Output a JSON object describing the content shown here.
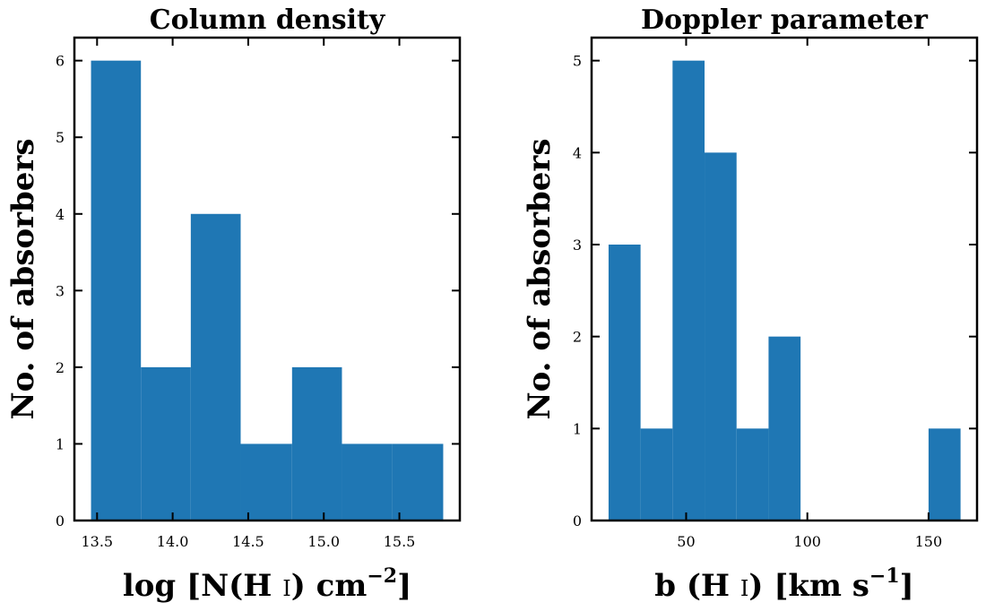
{
  "chart_data": [
    {
      "type": "bar",
      "title": "Column density",
      "xlabel": "log [N(H i) cm^-2]",
      "xlabel_parts": {
        "main": "log [N(H ",
        "ion": "I",
        "mid": ") cm",
        "sup": "−2",
        "end": "]"
      },
      "ylabel": "No. of absorbers",
      "xlim": [
        13.35,
        15.9
      ],
      "ylim": [
        0,
        6.3
      ],
      "xticks": [
        13.5,
        14.0,
        14.5,
        15.0,
        15.5
      ],
      "xtick_labels": [
        "13.5",
        "14.0",
        "14.5",
        "15.0",
        "15.5"
      ],
      "yticks": [
        0,
        1,
        2,
        3,
        4,
        5,
        6
      ],
      "ytick_labels": [
        "0",
        "1",
        "2",
        "3",
        "4",
        "5",
        "6"
      ],
      "bins": [
        {
          "x0": 13.46,
          "x1": 13.79,
          "count": 6
        },
        {
          "x0": 13.79,
          "x1": 14.12,
          "count": 2
        },
        {
          "x0": 14.12,
          "x1": 14.45,
          "count": 4
        },
        {
          "x0": 14.45,
          "x1": 14.79,
          "count": 1
        },
        {
          "x0": 14.79,
          "x1": 15.12,
          "count": 2
        },
        {
          "x0": 15.12,
          "x1": 15.45,
          "count": 1
        },
        {
          "x0": 15.45,
          "x1": 15.79,
          "count": 1
        }
      ],
      "color": "#1f77b4"
    },
    {
      "type": "bar",
      "title": "Doppler parameter",
      "xlabel": "b (H i) [km s^-1]",
      "xlabel_parts": {
        "main": "b (H ",
        "ion": "I",
        "mid": ") [km s",
        "sup": "−1",
        "end": "]"
      },
      "ylabel": "No. of absorbers",
      "xlim": [
        11,
        170
      ],
      "ylim": [
        0,
        5.25
      ],
      "xticks": [
        50,
        100,
        150
      ],
      "xtick_labels": [
        "50",
        "100",
        "150"
      ],
      "yticks": [
        0,
        1,
        2,
        3,
        4,
        5
      ],
      "ytick_labels": [
        "0",
        "1",
        "2",
        "3",
        "4",
        "5"
      ],
      "bins": [
        {
          "x0": 18.0,
          "x1": 31.2,
          "count": 3
        },
        {
          "x0": 31.2,
          "x1": 44.4,
          "count": 1
        },
        {
          "x0": 44.4,
          "x1": 57.6,
          "count": 5
        },
        {
          "x0": 57.6,
          "x1": 70.8,
          "count": 4
        },
        {
          "x0": 70.8,
          "x1": 84.0,
          "count": 1
        },
        {
          "x0": 84.0,
          "x1": 97.2,
          "count": 2
        },
        {
          "x0": 97.2,
          "x1": 110.4,
          "count": 0
        },
        {
          "x0": 110.4,
          "x1": 123.6,
          "count": 0
        },
        {
          "x0": 123.6,
          "x1": 136.8,
          "count": 0
        },
        {
          "x0": 136.8,
          "x1": 150.0,
          "count": 0
        },
        {
          "x0": 150.0,
          "x1": 163.2,
          "count": 1
        }
      ],
      "color": "#1f77b4"
    }
  ]
}
